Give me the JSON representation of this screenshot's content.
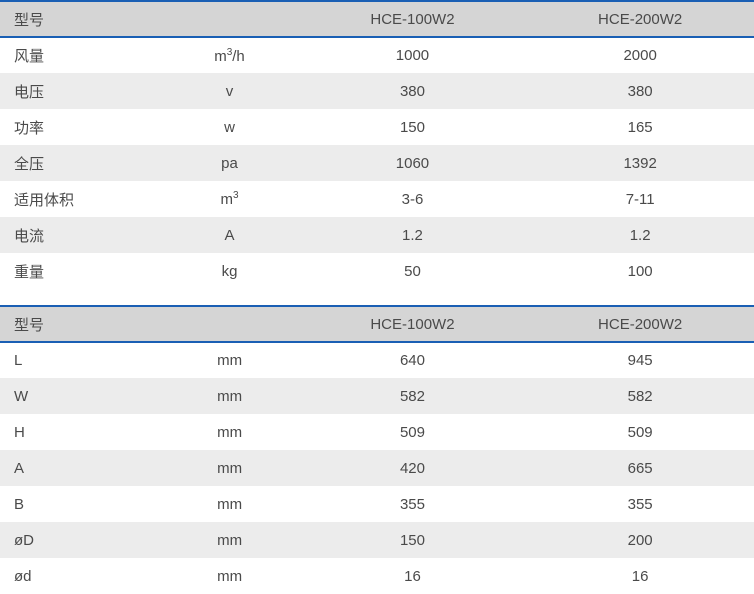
{
  "table1": {
    "header": {
      "label": "型号",
      "col1": "HCE-100W2",
      "col2": "HCE-200W2"
    },
    "rows": [
      {
        "label": "风量",
        "unit_html": "m<sup>3</sup>/h",
        "v1": "1000",
        "v2": "2000"
      },
      {
        "label": "电压",
        "unit_html": "v",
        "v1": "380",
        "v2": "380"
      },
      {
        "label": "功率",
        "unit_html": "w",
        "v1": "150",
        "v2": "165"
      },
      {
        "label": "全压",
        "unit_html": "pa",
        "v1": "1060",
        "v2": "1392"
      },
      {
        "label": "适用体积",
        "unit_html": "m<sup>3</sup>",
        "v1": "3-6",
        "v2": "7-11"
      },
      {
        "label": "电流",
        "unit_html": "A",
        "v1": "1.2",
        "v2": "1.2"
      },
      {
        "label": "重量",
        "unit_html": "kg",
        "v1": "50",
        "v2": "100"
      }
    ]
  },
  "table2": {
    "header": {
      "label": "型号",
      "col1": "HCE-100W2",
      "col2": "HCE-200W2"
    },
    "rows": [
      {
        "label": "L",
        "unit_html": "mm",
        "v1": "640",
        "v2": "945"
      },
      {
        "label": "W",
        "unit_html": "mm",
        "v1": "582",
        "v2": "582"
      },
      {
        "label": "H",
        "unit_html": "mm",
        "v1": "509",
        "v2": "509"
      },
      {
        "label": "A",
        "unit_html": "mm",
        "v1": "420",
        "v2": "665"
      },
      {
        "label": "B",
        "unit_html": "mm",
        "v1": "355",
        "v2": "355"
      },
      {
        "label": "øD",
        "unit_html": "mm",
        "v1": "150",
        "v2": "200"
      },
      {
        "label": "ød",
        "unit_html": "mm",
        "v1": "16",
        "v2": "16"
      }
    ]
  },
  "style": {
    "header_bg": "#d5d5d5",
    "row_even_bg": "#ffffff",
    "row_odd_bg": "#ececec",
    "border_color": "#1a5fb4",
    "text_color": "#4a4a4a",
    "font_size": 15
  }
}
